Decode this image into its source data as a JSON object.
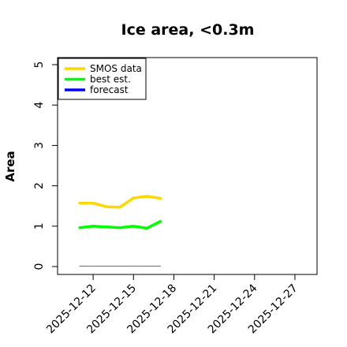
{
  "chart_data": {
    "type": "line",
    "title": "Ice area, <0.3m",
    "xlabel": "",
    "ylabel": "Area",
    "ylim": [
      0,
      5
    ],
    "yticks": [
      0,
      1,
      2,
      3,
      4,
      5
    ],
    "x": [
      "2025-12-11",
      "2025-12-12",
      "2025-12-13",
      "2025-12-14",
      "2025-12-15",
      "2025-12-16",
      "2025-12-17"
    ],
    "xticks": [
      {
        "date": "2025-12-12",
        "label": "2025-12-12",
        "color": "#000000"
      },
      {
        "date": "2025-12-15",
        "label": "2025-12-15",
        "color": "#000000"
      },
      {
        "date": "2025-12-18",
        "label": "2025-12-18",
        "color": "#228B22"
      },
      {
        "date": "2025-12-21",
        "label": "2025-12-21",
        "color": "#000000"
      },
      {
        "date": "2025-12-24",
        "label": "2025-12-24",
        "color": "#000000"
      },
      {
        "date": "2025-12-27",
        "label": "2025-12-27",
        "color": "#000000"
      }
    ],
    "xrange": [
      "2025-12-10",
      "2025-12-28"
    ],
    "legend_position": "top-left",
    "legend": [
      {
        "label": "SMOS data",
        "color": "#FFD700"
      },
      {
        "label": "best est.",
        "color": "#00FF00"
      },
      {
        "label": "forecast",
        "color": "#0000FF"
      }
    ],
    "series": [
      {
        "name": "SMOS data",
        "color": "#FFD700",
        "values": [
          1.57,
          1.57,
          1.48,
          1.47,
          1.7,
          1.74,
          1.69
        ]
      },
      {
        "name": "best est.",
        "color": "#00FF00",
        "values": [
          0.96,
          1.0,
          0.98,
          0.96,
          1.0,
          0.95,
          1.12
        ]
      },
      {
        "name": "",
        "color": "#808080",
        "values": [
          0.01,
          0.01,
          0.01,
          0.01,
          0.01,
          0.01,
          0.01
        ]
      }
    ],
    "grid": false
  }
}
